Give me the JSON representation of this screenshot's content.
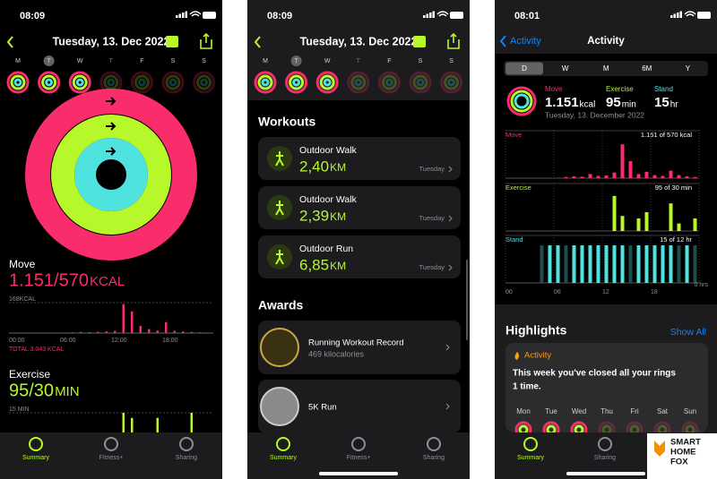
{
  "phones": [
    {
      "status_time": "08:09",
      "date": "Tuesday, 13. Dec 2022",
      "weekdays": [
        "M",
        "T",
        "W",
        "T",
        "F",
        "S",
        "S"
      ],
      "move": {
        "label": "Move",
        "value": "1.151/570",
        "unit": "KCAL",
        "chart": {
          "scale": {
            "value": 168,
            "label": "168KCAL"
          },
          "values": [
            0,
            0,
            0,
            0,
            0,
            0,
            2,
            4,
            6,
            5,
            7,
            9,
            12,
            160,
            120,
            40,
            22,
            14,
            60,
            12,
            9,
            6,
            4,
            2
          ],
          "x_labels": [
            "00:00",
            "06:00",
            "12:00",
            "18:00"
          ],
          "total": "TOTAL 3.043 KCAL"
        }
      },
      "exercise": {
        "label": "Exercise",
        "value": "95/30",
        "unit": "MIN",
        "chart": {
          "scale": {
            "value": 15,
            "label": "15 MIN"
          },
          "values": [
            0,
            0,
            0,
            0,
            0,
            0,
            0,
            0,
            0,
            0,
            0,
            0,
            0,
            15,
            12,
            0,
            0,
            12,
            0,
            0,
            0,
            15,
            0,
            0
          ]
        }
      },
      "tabs": [
        "Summary",
        "Fitness+",
        "Sharing"
      ]
    },
    {
      "status_time": "08:09",
      "date": "Tuesday, 13. Dec 2022",
      "weekdays": [
        "M",
        "T",
        "W",
        "T",
        "F",
        "S",
        "S"
      ],
      "workouts_title": "Workouts",
      "workouts": [
        {
          "name": "Outdoor Walk",
          "value": "2,40",
          "unit": "KM",
          "day": "Tuesday"
        },
        {
          "name": "Outdoor Walk",
          "value": "2,39",
          "unit": "KM",
          "day": "Tuesday"
        },
        {
          "name": "Outdoor Run",
          "value": "6,85",
          "unit": "KM",
          "day": "Tuesday"
        }
      ],
      "awards_title": "Awards",
      "awards": [
        {
          "name": "Running Workout Record",
          "detail": "469 kilocalories"
        },
        {
          "name": "5K Run"
        }
      ],
      "tabs": [
        "Summary",
        "Fitness+",
        "Sharing"
      ]
    },
    {
      "status_time": "08:01",
      "back": "Activity",
      "title": "Activity",
      "segments": [
        "D",
        "W",
        "M",
        "6M",
        "Y"
      ],
      "summary": {
        "move": {
          "label": "Move",
          "value": "1.151",
          "unit": "kcal"
        },
        "exercise": {
          "label": "Exercise",
          "value": "95",
          "unit": "min"
        },
        "stand": {
          "label": "Stand",
          "value": "15",
          "unit": "hr"
        },
        "date": "Tuesday, 13. December 2022"
      },
      "charts": [
        {
          "label": "Move",
          "goal": "1.151 of 570 kcal",
          "ylim": [
            0,
            200
          ],
          "values": [
            0,
            0,
            0,
            0,
            0,
            0,
            0,
            6,
            10,
            8,
            22,
            12,
            14,
            30,
            180,
            90,
            22,
            34,
            16,
            12,
            40,
            16,
            10,
            6
          ]
        },
        {
          "label": "Exercise",
          "goal": "95 of 30 min",
          "ylim": [
            0,
            30
          ],
          "values": [
            0,
            0,
            0,
            0,
            0,
            0,
            0,
            0,
            0,
            0,
            0,
            0,
            0,
            28,
            12,
            0,
            10,
            15,
            0,
            0,
            22,
            6,
            0,
            10
          ]
        },
        {
          "label": "Stand",
          "goal": "15 of 12 hr",
          "ylim": [
            0,
            1
          ],
          "values": [
            0,
            0,
            0,
            0,
            0,
            1,
            1,
            0,
            1,
            1,
            1,
            1,
            1,
            1,
            1,
            0,
            1,
            1,
            1,
            1,
            1,
            0,
            1,
            0
          ]
        }
      ],
      "x_labels": [
        "00",
        "06",
        "12",
        "18"
      ],
      "stand_axis": "0 hrs",
      "highlights": {
        "title": "Highlights",
        "show_all": "Show All",
        "card_title": "Activity",
        "text": "This week you've closed all your rings",
        "text2": "1 time.",
        "days": [
          "Mon",
          "Tue",
          "Wed",
          "Thu",
          "Fri",
          "Sat",
          "Sun"
        ]
      },
      "tabs": [
        "Summary",
        "Sharing"
      ]
    }
  ],
  "logo": [
    "SMART",
    "HOME",
    "FOX"
  ]
}
